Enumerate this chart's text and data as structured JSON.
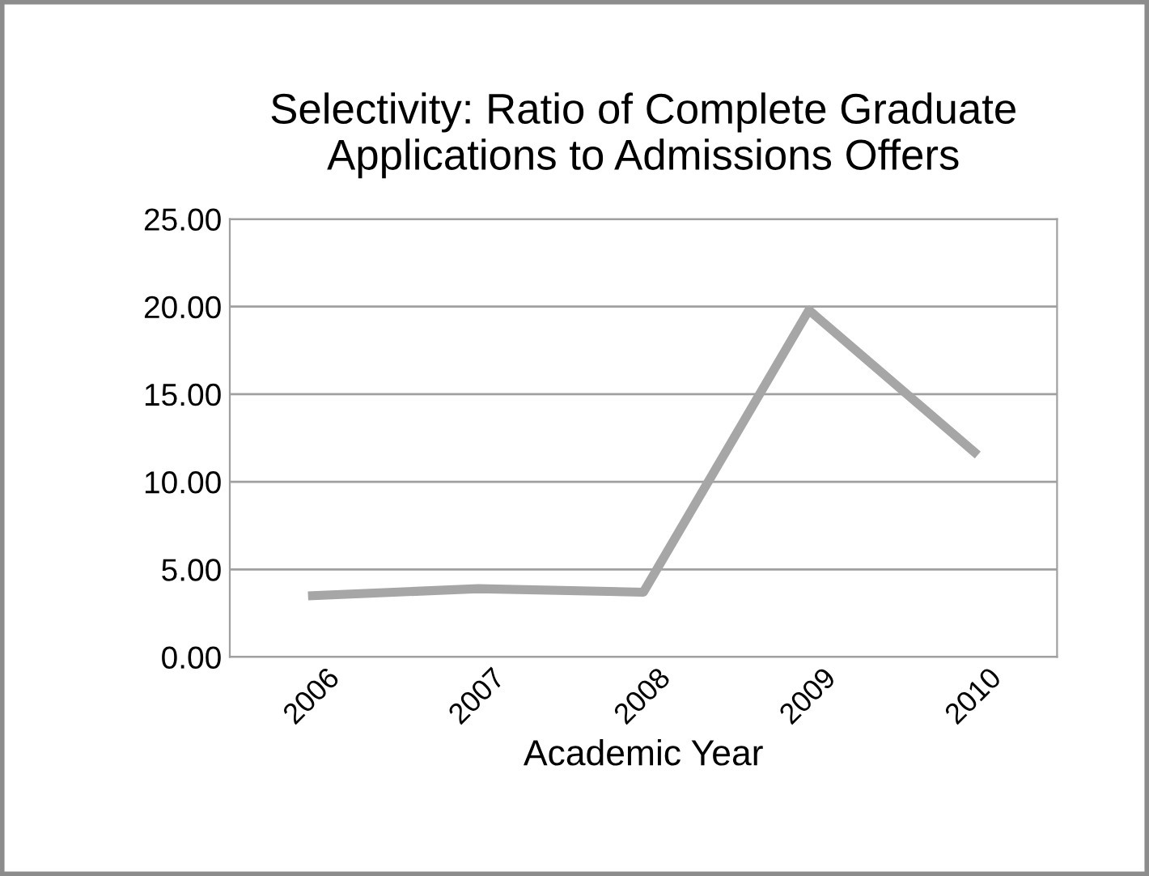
{
  "chart_data": {
    "type": "line",
    "title": "Selectivity: Ratio of Complete Graduate\nApplications to Admissions Offers",
    "xlabel": "Academic Year",
    "categories": [
      "2006",
      "2007",
      "2008",
      "2009",
      "2010"
    ],
    "series": [
      {
        "color": "#a6a6a6",
        "values": [
          3.5,
          3.9,
          3.7,
          19.8,
          11.7
        ]
      }
    ],
    "ylim": [
      0,
      25
    ],
    "yticks": [
      {
        "value": 0,
        "label": "0.00"
      },
      {
        "value": 5,
        "label": "5.00"
      },
      {
        "value": 10,
        "label": "10.00"
      },
      {
        "value": 15,
        "label": "15.00"
      },
      {
        "value": 20,
        "label": "20.00"
      },
      {
        "value": 25,
        "label": "25.00"
      }
    ],
    "grid": "y",
    "legend": false,
    "marker": "none",
    "line_style": "solid"
  }
}
